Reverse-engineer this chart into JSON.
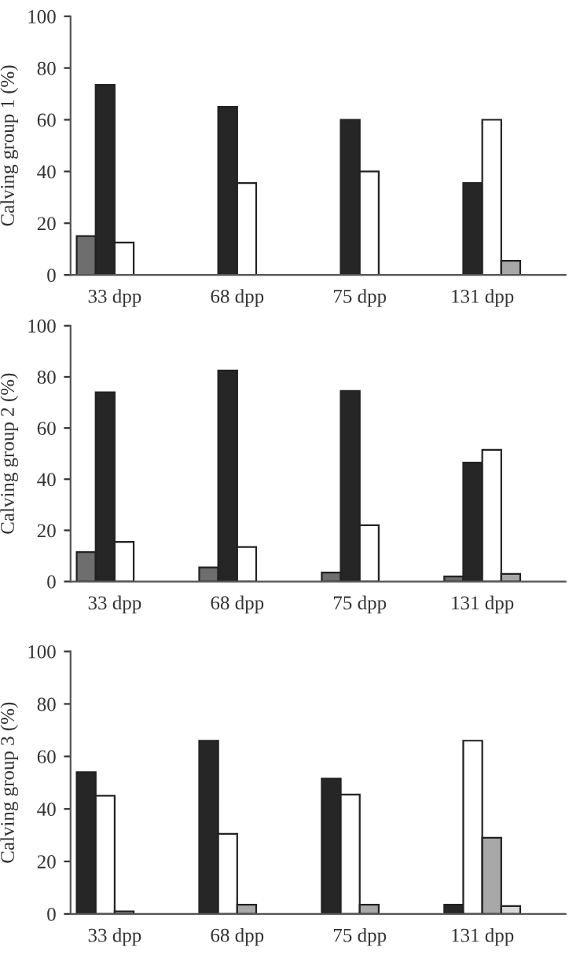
{
  "chart_data": [
    {
      "type": "bar",
      "ylabel": "Calving group 1 (%)",
      "categories": [
        "33 dpp",
        "68 dpp",
        "75 dpp",
        "131 dpp"
      ],
      "ylim": [
        0,
        100
      ],
      "yticks": [
        0,
        20,
        40,
        60,
        80,
        100
      ],
      "grid": false,
      "legend": false,
      "series": [
        {
          "color": "#6e6e6e",
          "values": [
            15,
            null,
            null,
            null
          ]
        },
        {
          "color": "#262626",
          "values": [
            73.5,
            65,
            60,
            35.5
          ]
        },
        {
          "color": "#ffffff",
          "values": [
            12.5,
            35.5,
            40,
            60
          ]
        },
        {
          "color": "#a8a8a8",
          "values": [
            null,
            null,
            null,
            5.5
          ]
        }
      ]
    },
    {
      "type": "bar",
      "ylabel": "Calving group 2 (%)",
      "categories": [
        "33 dpp",
        "68 dpp",
        "75 dpp",
        "131 dpp"
      ],
      "ylim": [
        0,
        100
      ],
      "yticks": [
        0,
        20,
        40,
        60,
        80,
        100
      ],
      "grid": false,
      "legend": false,
      "series": [
        {
          "color": "#6e6e6e",
          "values": [
            11.5,
            5.5,
            3.5,
            2
          ]
        },
        {
          "color": "#262626",
          "values": [
            74,
            82.5,
            74.5,
            46.5
          ]
        },
        {
          "color": "#ffffff",
          "values": [
            15.5,
            13.5,
            22,
            51.5
          ]
        },
        {
          "color": "#a8a8a8",
          "values": [
            null,
            null,
            null,
            3
          ]
        }
      ]
    },
    {
      "type": "bar",
      "ylabel": "Calving group 3 (%)",
      "categories": [
        "33 dpp",
        "68 dpp",
        "75 dpp",
        "131 dpp"
      ],
      "ylim": [
        0,
        100
      ],
      "yticks": [
        0,
        20,
        40,
        60,
        80,
        100
      ],
      "grid": false,
      "legend": false,
      "series": [
        {
          "color": "#262626",
          "values": [
            54,
            66,
            51.5,
            3.5
          ]
        },
        {
          "color": "#ffffff",
          "values": [
            45,
            30.5,
            45.5,
            66
          ]
        },
        {
          "color": "#a8a8a8",
          "values": [
            1,
            3.5,
            3.5,
            29
          ]
        },
        {
          "color": "#d9d9d9",
          "values": [
            null,
            null,
            null,
            3
          ]
        }
      ]
    }
  ]
}
